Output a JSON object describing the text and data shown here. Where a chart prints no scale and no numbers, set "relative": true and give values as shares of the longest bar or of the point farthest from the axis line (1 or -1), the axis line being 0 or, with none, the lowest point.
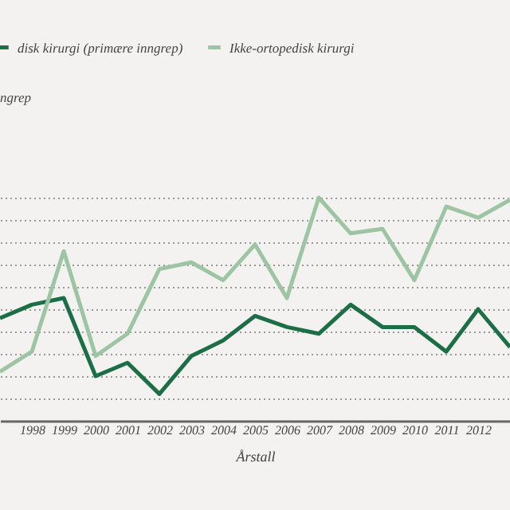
{
  "chart_data": {
    "type": "line",
    "relative": true,
    "xlabel": "Årstall",
    "annotations": [
      "ngrep"
    ],
    "grid": "y",
    "legend": "top left",
    "marker": "none",
    "line_style": "solid",
    "categories": [
      null,
      "1998",
      "1999",
      "2000",
      "2001",
      "2002",
      "2003",
      "2004",
      "2005",
      "2006",
      "2007",
      "2008",
      "2009",
      "2010",
      "2011",
      "2012",
      null
    ],
    "series": [
      {
        "name": "disk kirurgi (primære inngrep)",
        "color": "#1b6e45",
        "values": [
          0.46,
          0.52,
          0.55,
          0.2,
          0.26,
          0.12,
          0.29,
          0.36,
          0.47,
          0.42,
          0.39,
          0.52,
          0.42,
          0.42,
          0.31,
          0.5,
          0.33
        ]
      },
      {
        "name": "Ikke-ortopedisk kirurgi",
        "color": "#9dc4a3",
        "values": [
          0.22,
          0.31,
          0.76,
          0.29,
          0.39,
          0.68,
          0.71,
          0.63,
          0.79,
          0.55,
          1.0,
          0.84,
          0.86,
          0.63,
          0.96,
          0.91,
          0.99
        ]
      }
    ]
  }
}
